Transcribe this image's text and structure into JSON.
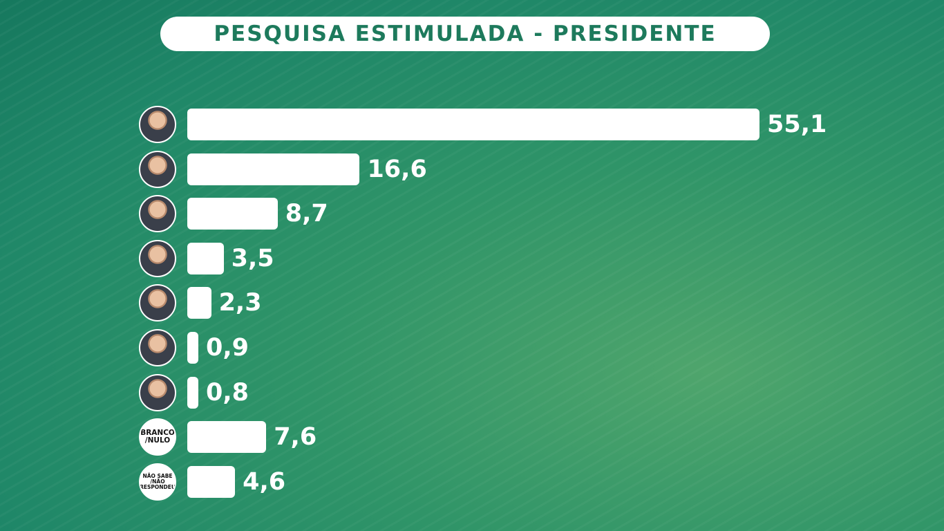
{
  "chart_data": {
    "type": "hbar",
    "title": "PESQUISA ESTIMULADA - PRESIDENTE",
    "categories": [
      null,
      null,
      null,
      null,
      null,
      null,
      null,
      "BRANCO /NULO",
      "NÃO SABE /NÃO RESPONDEU"
    ],
    "values": [
      55.1,
      16.6,
      8.7,
      3.5,
      2.3,
      0.9,
      0.8,
      7.6,
      4.6
    ],
    "value_labels": [
      "55,1",
      "16,6",
      "8,7",
      "3,5",
      "2,3",
      "0,9",
      "0,8",
      "7,6",
      "4,6"
    ],
    "color": "#ffffff"
  }
}
